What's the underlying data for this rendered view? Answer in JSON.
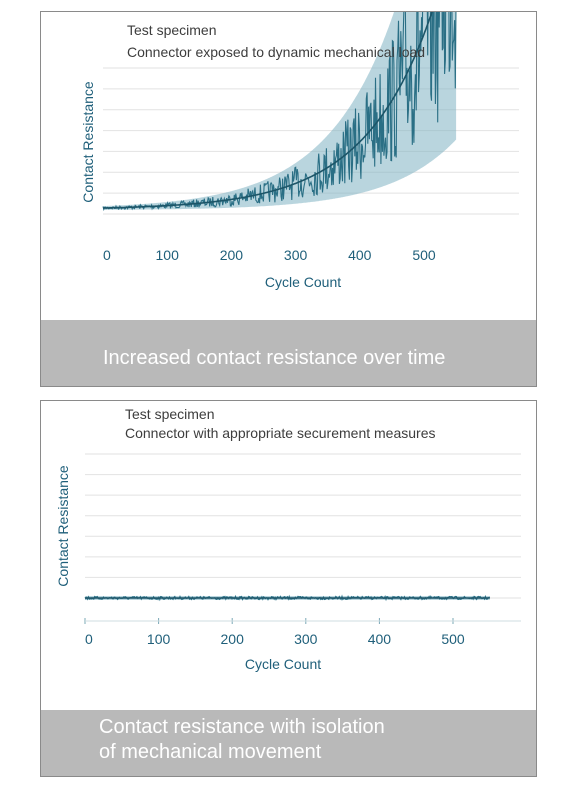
{
  "chart_data": [
    {
      "type": "line",
      "annotation": [
        "Test specimen",
        "Connector exposed to dynamic mechanical load"
      ],
      "xlabel": "Cycle Count",
      "ylabel": "Contact Resistance",
      "x_ticks": [
        0,
        100,
        200,
        300,
        400,
        500
      ],
      "xlim": [
        0,
        550
      ],
      "y_ticks_labeled": false,
      "gridlines": 8,
      "trend": "exponential increase with widening scatter",
      "caption": "Increased contact resistance over time",
      "colors": {
        "line": "#2a6f85",
        "band": "#7fb3c2",
        "text": "#1f5f7a"
      }
    },
    {
      "type": "line",
      "annotation": [
        "Test specimen",
        "Connector with appropriate securement measures"
      ],
      "xlabel": "Cycle Count",
      "ylabel": "Contact Resistance",
      "x_ticks": [
        0,
        100,
        200,
        300,
        400,
        500
      ],
      "xlim": [
        0,
        550
      ],
      "y_ticks_labeled": false,
      "gridlines": 8,
      "trend": "flat, constant low resistance",
      "caption_lines": [
        "Contact resistance with isolation",
        "of mechanical movement"
      ],
      "colors": {
        "line": "#2a6f85",
        "band": "#7fb3c2",
        "text": "#1f5f7a"
      }
    }
  ]
}
